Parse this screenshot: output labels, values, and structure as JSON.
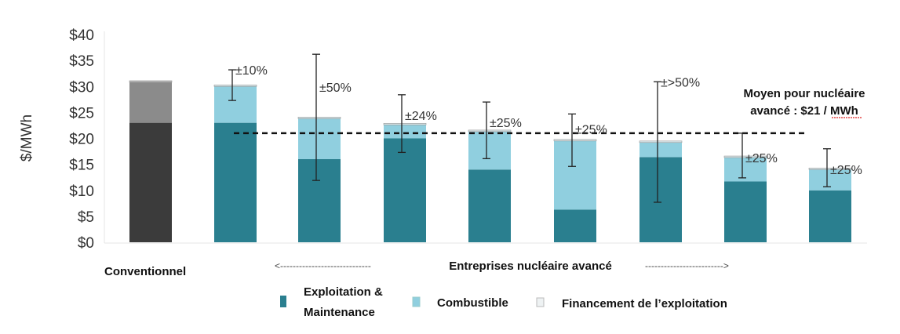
{
  "chart_data": {
    "type": "bar",
    "stacked": true,
    "ylabel": "$/MWh",
    "ylim": [
      0,
      40
    ],
    "yticks": [
      "$0",
      "$5",
      "$10",
      "$15",
      "$20",
      "$25",
      "$30",
      "$35",
      "$40"
    ],
    "grid": false,
    "categories": [
      "Conventionnel",
      "",
      "",
      "",
      "",
      "",
      "",
      "",
      ""
    ],
    "series": [
      {
        "name": "Exploitation & Maintenance",
        "color": "#2a7f8f",
        "values": [
          23,
          23,
          16,
          20,
          14,
          6.3,
          16.4,
          11.7,
          10
        ]
      },
      {
        "name": "Combustible",
        "color": "#90cfdf",
        "values": [
          7.8,
          7,
          7.8,
          2.6,
          7.3,
          13.2,
          2.8,
          4.6,
          4
        ]
      },
      {
        "name": "Financement de l’exploitation",
        "color": "#d6e3e6",
        "values": [
          0.3,
          0.3,
          0.3,
          0.3,
          0.3,
          0.3,
          0.3,
          0.3,
          0.3
        ]
      }
    ],
    "conventional_colors": [
      "#3b3b3b",
      "#8b8b8b",
      "#b5b5b5"
    ],
    "error_bars": [
      null,
      [
        27.3,
        33.2
      ],
      [
        11.9,
        36.2
      ],
      [
        17.3,
        28.4
      ],
      [
        16.1,
        27
      ],
      [
        14.6,
        24.7
      ],
      [
        7.7,
        30.9
      ],
      [
        12.4,
        21
      ],
      [
        10.7,
        18
      ]
    ],
    "error_labels": [
      "",
      "±10%",
      "±50%",
      "±24%",
      "±25%",
      "±25%",
      "±>50%",
      "±25%",
      "±25%"
    ],
    "average_line": {
      "value": 21,
      "label_line1": "Moyen pour nucléaire",
      "label_line2": "avancé : $21 / MWh"
    },
    "group_label": "Entreprises nucléaire avancé",
    "group_arrow_left": "<-----------------------------",
    "group_arrow_right": "------------------------->",
    "legend": {
      "position": "bottom",
      "items": [
        "Exploitation &",
        "Maintenance",
        "Combustible",
        "Financement de l’exploitation"
      ]
    }
  }
}
